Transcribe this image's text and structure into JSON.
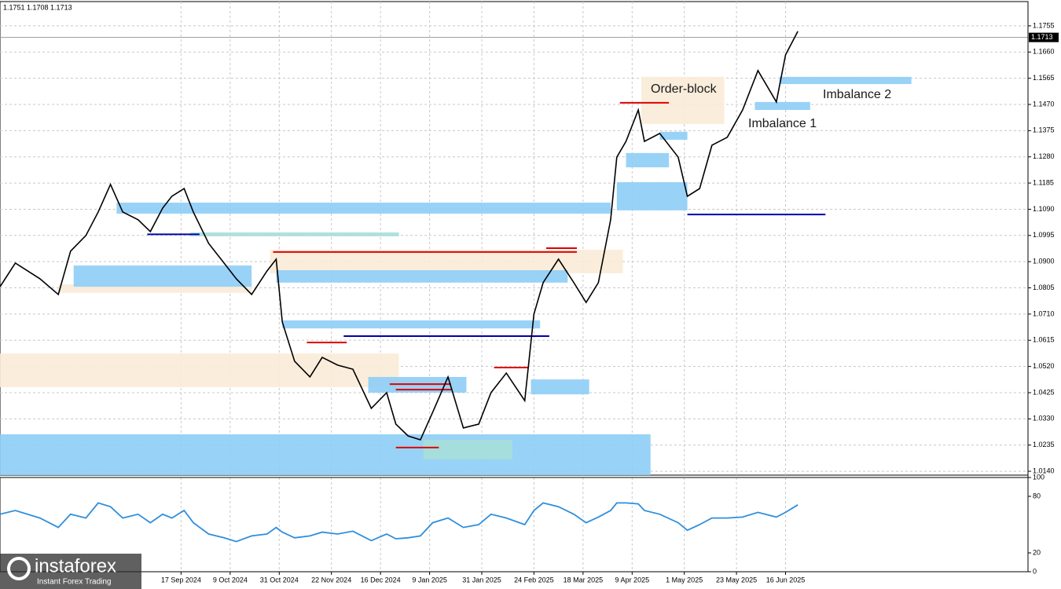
{
  "header": {
    "ohlc": "1.1751 1.1708 1.1713"
  },
  "watermark": {
    "brand": "instaforex",
    "tagline": "Instant Forex Trading"
  },
  "chart_data": [
    {
      "type": "line",
      "xlim": [
        0,
        335
      ],
      "ylim": [
        1.0126,
        1.1843
      ],
      "xticks": [
        {
          "value": 59,
          "label": "17 Sep 2024"
        },
        {
          "value": 75,
          "label": "9 Oct 2024"
        },
        {
          "value": 91,
          "label": "31 Oct 2024"
        },
        {
          "value": 108,
          "label": "22 Nov 2024"
        },
        {
          "value": 124,
          "label": "16 Dec 2024"
        },
        {
          "value": 140,
          "label": "9 Jan 2025"
        },
        {
          "value": 157,
          "label": "31 Jan 2025"
        },
        {
          "value": 174,
          "label": "24 Feb 2025"
        },
        {
          "value": 190,
          "label": "18 Mar 2025"
        },
        {
          "value": 206,
          "label": "9 Apr 2025"
        },
        {
          "value": 223,
          "label": "1 May 2025"
        },
        {
          "value": 240,
          "label": "23 May 2025"
        },
        {
          "value": 256,
          "label": "16 Jun 2025"
        }
      ],
      "yticks": [
        {
          "value": 1.1755,
          "label": "1.1755"
        },
        {
          "value": 1.166,
          "label": "1.1660"
        },
        {
          "value": 1.1565,
          "label": "1.1565"
        },
        {
          "value": 1.147,
          "label": "1.1470"
        },
        {
          "value": 1.1375,
          "label": "1.1375"
        },
        {
          "value": 1.128,
          "label": "1.1280"
        },
        {
          "value": 1.1185,
          "label": "1.1185"
        },
        {
          "value": 1.109,
          "label": "1.1090"
        },
        {
          "value": 1.0995,
          "label": "1.0995"
        },
        {
          "value": 1.09,
          "label": "1.0900"
        },
        {
          "value": 1.0805,
          "label": "1.0805"
        },
        {
          "value": 1.071,
          "label": "1.0710"
        },
        {
          "value": 1.0615,
          "label": "1.0615"
        },
        {
          "value": 1.052,
          "label": "1.0520"
        },
        {
          "value": 1.0425,
          "label": "1.0425"
        },
        {
          "value": 1.033,
          "label": "1.0330"
        },
        {
          "value": 1.0235,
          "label": "1.0235"
        },
        {
          "value": 1.014,
          "label": "1.0140"
        }
      ],
      "grid": true,
      "current_price": 1.1713,
      "x": [
        0,
        5,
        13,
        19,
        23,
        28,
        32,
        36,
        40,
        45,
        49,
        53,
        56,
        60,
        63,
        68,
        73,
        77,
        82,
        87,
        90,
        92,
        96,
        101,
        105,
        110,
        115,
        121,
        126,
        129,
        133,
        137,
        141,
        146,
        151,
        156,
        160,
        165,
        171,
        174,
        177,
        182,
        187,
        191,
        195,
        199,
        201,
        204,
        208,
        210,
        215,
        221,
        224,
        228,
        232,
        237,
        242,
        247,
        253,
        256,
        260
      ],
      "series": [
        {
          "color": "#000000",
          "values": [
            1.0809,
            1.0895,
            1.0838,
            1.0781,
            1.0938,
            1.0995,
            1.108,
            1.118,
            1.108,
            1.1052,
            1.1009,
            1.1094,
            1.1137,
            1.1165,
            1.108,
            1.0966,
            1.0895,
            1.0838,
            1.0781,
            1.0866,
            1.0909,
            1.0681,
            1.0539,
            1.0482,
            1.0553,
            1.0525,
            1.051,
            1.0368,
            1.0425,
            1.0311,
            1.0268,
            1.0254,
            1.0354,
            1.0482,
            1.0297,
            1.0311,
            1.0425,
            1.0496,
            1.0396,
            1.071,
            1.0824,
            1.0909,
            1.0824,
            1.0752,
            1.0824,
            1.1052,
            1.1279,
            1.1336,
            1.145,
            1.1336,
            1.1365,
            1.1279,
            1.1137,
            1.1165,
            1.1322,
            1.1351,
            1.145,
            1.1593,
            1.1479,
            1.165,
            1.1735
          ]
        }
      ],
      "zones": [
        {
          "x": [
            38,
            199
          ],
          "y": [
            1.1074,
            1.1114
          ],
          "color": "#8ecdf6"
        },
        {
          "x": [
            62,
            130
          ],
          "y": [
            1.0992,
            1.1006
          ],
          "color": "#a6dfd8"
        },
        {
          "x": [
            19,
            82
          ],
          "y": [
            1.0787,
            1.0818
          ],
          "color": "#faebd7"
        },
        {
          "x": [
            24,
            82
          ],
          "y": [
            1.0809,
            1.0886
          ],
          "color": "#8ecdf6"
        },
        {
          "x": [
            88,
            203
          ],
          "y": [
            1.0858,
            1.0943
          ],
          "color": "#faebd7"
        },
        {
          "x": [
            90,
            185
          ],
          "y": [
            1.0824,
            1.0869
          ],
          "color": "#8ecdf6"
        },
        {
          "x": [
            92,
            176
          ],
          "y": [
            1.0658,
            1.0687
          ],
          "color": "#8ecdf6"
        },
        {
          "x": [
            0,
            130
          ],
          "y": [
            1.0445,
            1.0567
          ],
          "color": "#faebd7"
        },
        {
          "x": [
            120,
            152
          ],
          "y": [
            1.0425,
            1.0482
          ],
          "color": "#8ecdf6"
        },
        {
          "x": [
            173,
            192
          ],
          "y": [
            1.0419,
            1.0473
          ],
          "color": "#8ecdf6"
        },
        {
          "x": [
            0,
            212
          ],
          "y": [
            1.0126,
            1.0274
          ],
          "color": "#8ecdf6"
        },
        {
          "x": [
            138,
            167
          ],
          "y": [
            1.0183,
            1.0254
          ],
          "color": "#a6dfd8"
        },
        {
          "x": [
            201,
            224
          ],
          "y": [
            1.1086,
            1.1188
          ],
          "color": "#8ecdf6"
        },
        {
          "x": [
            204,
            218
          ],
          "y": [
            1.1242,
            1.1294
          ],
          "color": "#8ecdf6"
        },
        {
          "x": [
            215,
            224
          ],
          "y": [
            1.1342,
            1.1371
          ],
          "color": "#8ecdf6"
        },
        {
          "x": [
            209,
            236
          ],
          "y": [
            1.1399,
            1.157
          ],
          "color": "#faebd7"
        },
        {
          "x": [
            246,
            264
          ],
          "y": [
            1.145,
            1.1479
          ],
          "color": "#8ecdf6"
        },
        {
          "x": [
            254,
            297
          ],
          "y": [
            1.1544,
            1.157
          ],
          "color": "#8ecdf6"
        }
      ],
      "levels": [
        {
          "x": [
            89,
            188
          ],
          "y": 1.0935,
          "color": "#e00000"
        },
        {
          "x": [
            178,
            188
          ],
          "y": 1.0949,
          "color": "#e00000"
        },
        {
          "x": [
            112,
            179
          ],
          "y": 1.063,
          "color": "#0000aa"
        },
        {
          "x": [
            100,
            113
          ],
          "y": 1.0607,
          "color": "#e00000"
        },
        {
          "x": [
            127,
            147
          ],
          "y": 1.0456,
          "color": "#e00000"
        },
        {
          "x": [
            129,
            147
          ],
          "y": 1.0436,
          "color": "#e00000"
        },
        {
          "x": [
            129,
            143
          ],
          "y": 1.0226,
          "color": "#e00000"
        },
        {
          "x": [
            161,
            172
          ],
          "y": 1.0516,
          "color": "#e00000"
        },
        {
          "x": [
            202,
            218
          ],
          "y": 1.1476,
          "color": "#e00000"
        },
        {
          "x": [
            224,
            269
          ],
          "y": 1.1071,
          "color": "#0000aa"
        },
        {
          "x": [
            48,
            65
          ],
          "y": 1.0999,
          "color": "#0000aa"
        }
      ],
      "annotations": [
        "Order-block",
        "Imbalance 2",
        "Imbalance 1"
      ]
    },
    {
      "type": "line",
      "xlim": [
        0,
        335
      ],
      "ylim": [
        0,
        100
      ],
      "yticks": [
        0,
        20,
        80,
        100
      ],
      "x": [
        0,
        5,
        13,
        19,
        23,
        28,
        32,
        36,
        40,
        45,
        49,
        53,
        56,
        60,
        63,
        68,
        73,
        77,
        82,
        87,
        90,
        92,
        96,
        101,
        105,
        110,
        115,
        121,
        126,
        129,
        133,
        137,
        141,
        146,
        151,
        156,
        160,
        165,
        171,
        174,
        177,
        182,
        187,
        191,
        195,
        199,
        201,
        204,
        208,
        210,
        215,
        221,
        224,
        228,
        232,
        237,
        242,
        247,
        253,
        256,
        260
      ],
      "series": [
        {
          "color": "#2f8fdc",
          "values": [
            61,
            65,
            57,
            47,
            61,
            57,
            73,
            69,
            57,
            61,
            52,
            61,
            57,
            65,
            52,
            40,
            36,
            32,
            38,
            40,
            47,
            42,
            36,
            38,
            42,
            40,
            43,
            33,
            40,
            35,
            36,
            38,
            52,
            57,
            47,
            50,
            61,
            57,
            50,
            65,
            73,
            69,
            61,
            52,
            58,
            65,
            73,
            73,
            72,
            65,
            61,
            52,
            44,
            50,
            57,
            57,
            58,
            63,
            58,
            63,
            71
          ]
        }
      ]
    }
  ]
}
